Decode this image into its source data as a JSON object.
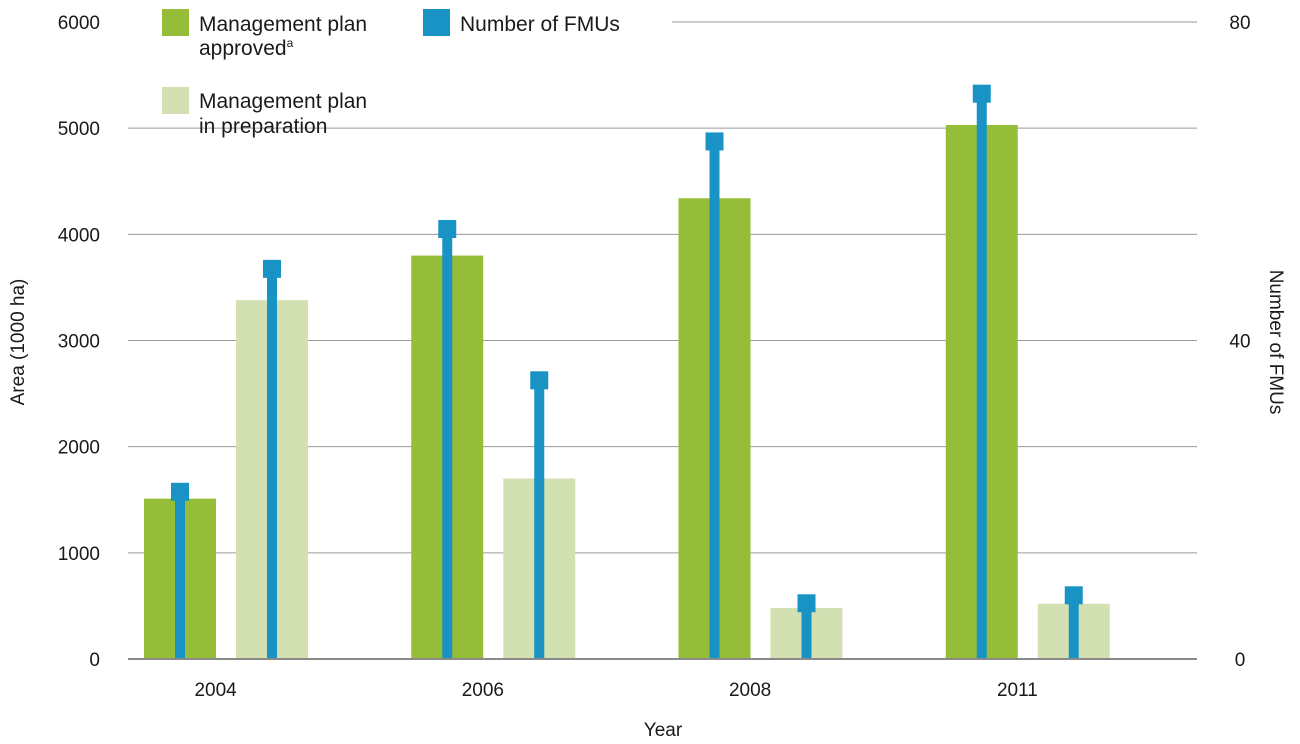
{
  "chart_data": {
    "type": "bar",
    "xlabel": "Year",
    "ylabel": "Area (1000 ha)",
    "y2label": "Number of FMUs",
    "categories": [
      "2004",
      "2006",
      "2008",
      "2011"
    ],
    "ylim": [
      0,
      6000
    ],
    "y2lim": [
      0,
      80
    ],
    "yticks": [
      "0",
      "1000",
      "2000",
      "3000",
      "4000",
      "5000",
      "6000"
    ],
    "y2ticks": [
      "0",
      "40",
      "80"
    ],
    "grid": true,
    "legend_position": "top-left",
    "series": [
      {
        "name": "Management plan approved",
        "name_superscript": "a",
        "axis": "left",
        "mark": "bar",
        "color": "#95bd37",
        "values": [
          1510,
          3800,
          4340,
          5030
        ]
      },
      {
        "name": "Management plan in preparation",
        "axis": "left",
        "mark": "bar",
        "color": "#d2e0b2",
        "values": [
          3380,
          1700,
          480,
          520
        ]
      },
      {
        "name": "Number of FMUs",
        "axis": "right",
        "mark": "stem",
        "color": "#1893c4",
        "values_approved": [
          21,
          54,
          65,
          71
        ],
        "values_in_preparation": [
          49,
          35,
          7,
          8
        ]
      }
    ]
  }
}
